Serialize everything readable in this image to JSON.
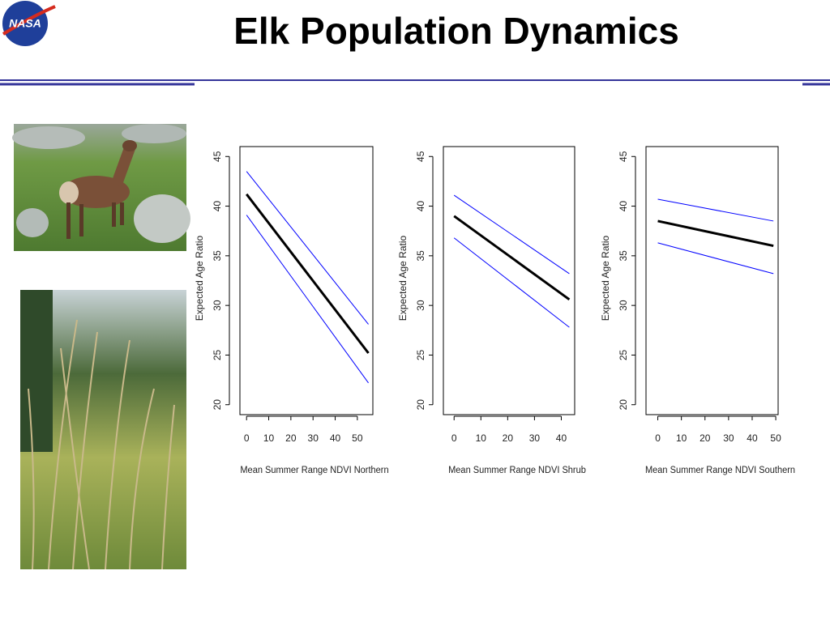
{
  "logo": "NASA",
  "title": "Elk Population Dynamics",
  "chart_data": [
    {
      "type": "line",
      "x_label": "Mean Summer Range NDVI Northern",
      "y_label": "Expected Age Ratio",
      "x": [
        0,
        55
      ],
      "series": [
        {
          "color": "#0000ff",
          "values": [
            43.5,
            28.1
          ]
        },
        {
          "color": "#000000",
          "values": [
            41.2,
            25.2
          ]
        },
        {
          "color": "#0000ff",
          "values": [
            39.1,
            22.2
          ]
        }
      ],
      "xlim": [
        -3,
        57
      ],
      "ylim": [
        19,
        46
      ],
      "xticks": [
        0,
        10,
        20,
        30,
        40,
        50
      ],
      "yticks": [
        20,
        25,
        30,
        35,
        40,
        45
      ]
    },
    {
      "type": "line",
      "x_label": "Mean Summer Range NDVI Shrub",
      "y_label": "Expected Age Ratio",
      "x": [
        0,
        43
      ],
      "series": [
        {
          "color": "#0000ff",
          "values": [
            41.1,
            33.2
          ]
        },
        {
          "color": "#000000",
          "values": [
            39.0,
            30.6
          ]
        },
        {
          "color": "#0000ff",
          "values": [
            36.8,
            27.8
          ]
        }
      ],
      "xlim": [
        -4,
        45
      ],
      "ylim": [
        19,
        46
      ],
      "xticks": [
        0,
        10,
        20,
        30,
        40
      ],
      "yticks": [
        20,
        25,
        30,
        35,
        40,
        45
      ]
    },
    {
      "type": "line",
      "x_label": "Mean Summer Range NDVI Southern",
      "y_label": "Expected Age Ratio",
      "x": [
        0,
        49
      ],
      "series": [
        {
          "color": "#0000ff",
          "values": [
            40.7,
            38.5
          ]
        },
        {
          "color": "#000000",
          "values": [
            38.5,
            36.0
          ]
        },
        {
          "color": "#0000ff",
          "values": [
            36.3,
            33.2
          ]
        }
      ],
      "xlim": [
        -5,
        51
      ],
      "ylim": [
        19,
        46
      ],
      "xticks": [
        0,
        10,
        20,
        30,
        40,
        50
      ],
      "yticks": [
        20,
        25,
        30,
        35,
        40,
        45
      ]
    }
  ]
}
